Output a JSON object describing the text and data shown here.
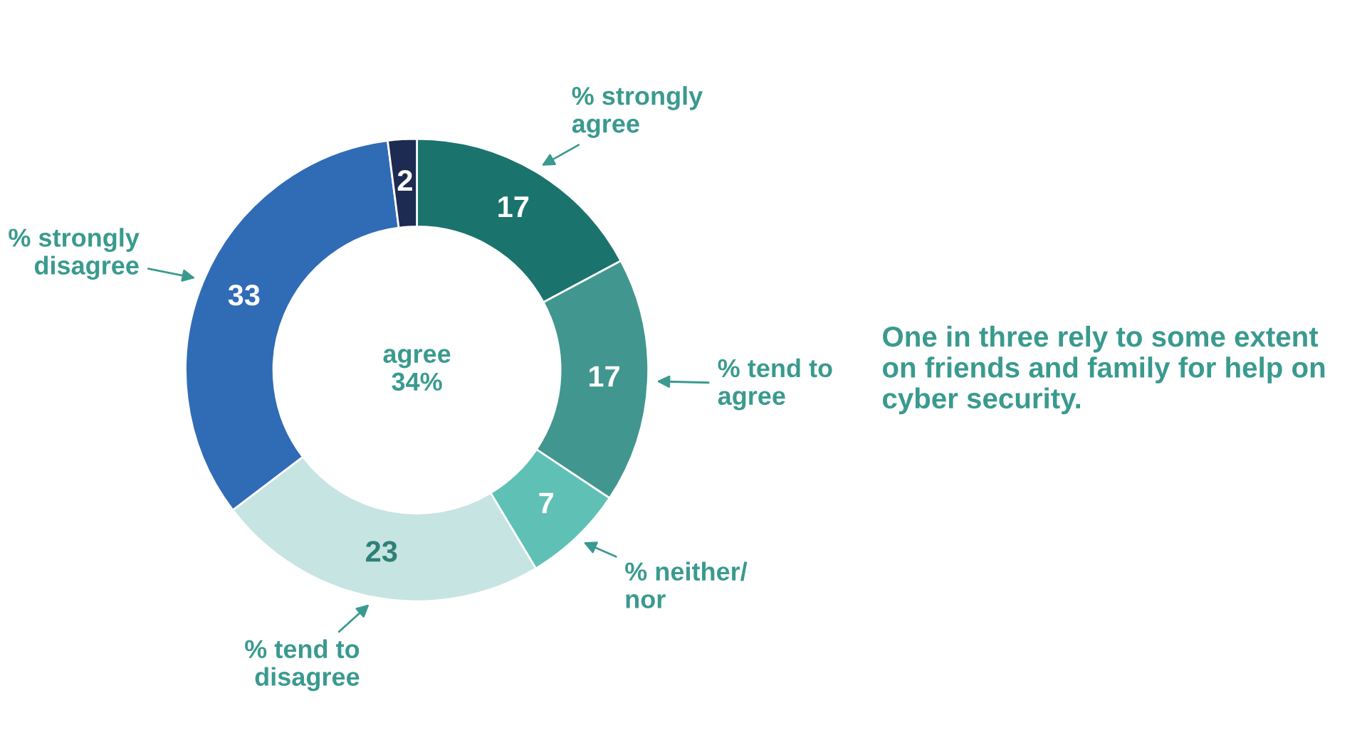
{
  "chart_data": {
    "type": "donut",
    "title": "One in three rely to some extent\non friends and family for help on\ncyber security.",
    "categories": [
      "% strongly\nagree",
      "% tend to\nagree",
      "% neither/\nnor",
      "% tend to\ndisagree",
      "% strongly\ndisagree",
      null
    ],
    "values": [
      17,
      17,
      7,
      23,
      33,
      2
    ],
    "colors": [
      "#1b736e",
      "#41968f",
      "#5fc0b5",
      "#c6e4e2",
      "#306bb6",
      "#1d2a52"
    ],
    "data_labels": true,
    "annotations": [
      "agree\n34%"
    ]
  }
}
